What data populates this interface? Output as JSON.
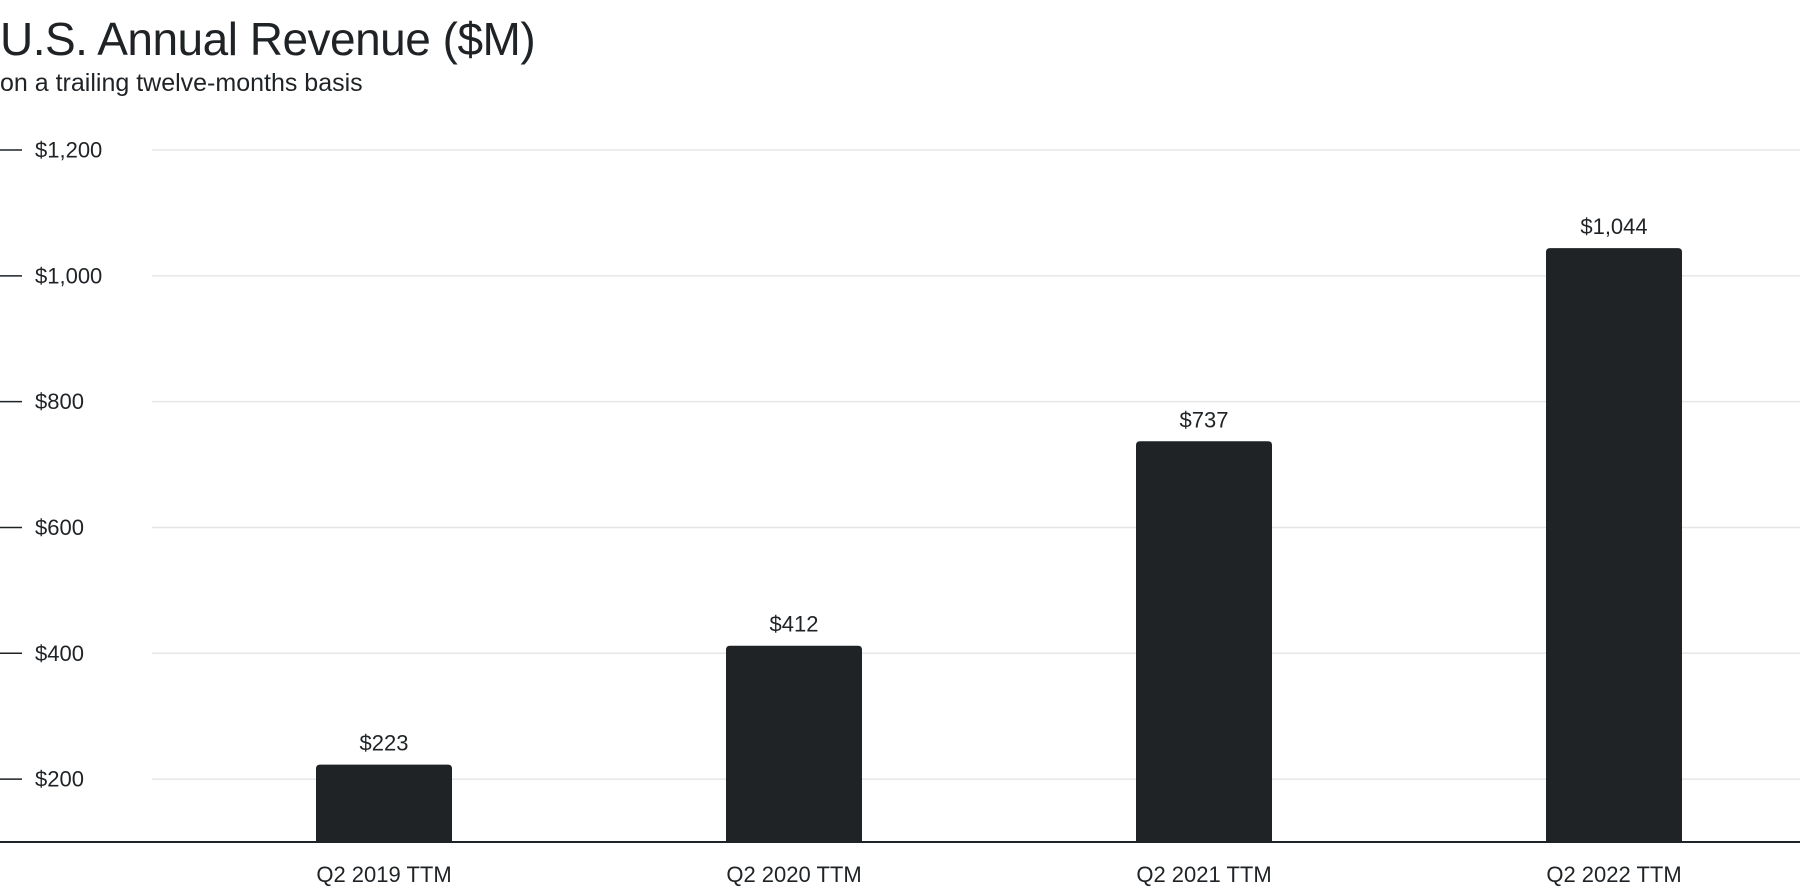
{
  "chart_data": {
    "type": "bar",
    "title": "U.S. Annual Revenue ($M)",
    "subtitle": "on a trailing twelve-months basis",
    "categories": [
      "Q2 2019 TTM",
      "Q2 2020 TTM",
      "Q2 2021 TTM",
      "Q2 2022 TTM"
    ],
    "values": [
      223,
      412,
      737,
      1044
    ],
    "data_labels": [
      "$223",
      "$412",
      "$737",
      "$1,044"
    ],
    "yticks": [
      200,
      400,
      600,
      800,
      1000,
      1200
    ],
    "ytick_labels": [
      "$200",
      "$400",
      "$600",
      "$800",
      "$1,000",
      "$1,200"
    ],
    "ylim": [
      100,
      1200
    ],
    "xlabel": "",
    "ylabel": "",
    "grid": true,
    "colors": {
      "bar": "#1f2326",
      "grid": "#e6e6e6",
      "axis": "#1f2326",
      "text": "#1f2326"
    }
  }
}
